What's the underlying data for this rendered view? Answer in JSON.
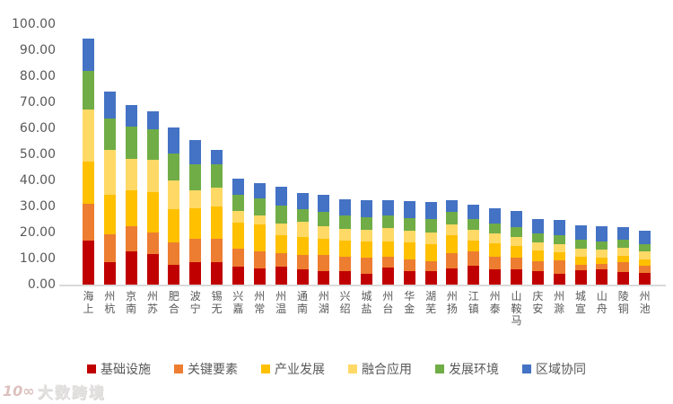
{
  "chart_data": {
    "type": "bar",
    "stacked": true,
    "title": "",
    "xlabel": "",
    "ylabel": "",
    "ylim": [
      0,
      100
    ],
    "grid": false,
    "legend_position": "bottom",
    "x_label_orientation": "vertical-bottom-to-top",
    "y_ticks": [
      "0.00",
      "10.00",
      "20.00",
      "30.00",
      "40.00",
      "50.00",
      "60.00",
      "70.00",
      "80.00",
      "90.00",
      "100.00"
    ],
    "categories": [
      "上海",
      "杭州",
      "南京",
      "苏州",
      "合肥",
      "宁波",
      "无锡",
      "嘉兴",
      "常州",
      "温州",
      "南通",
      "湖州",
      "绍兴",
      "盐城",
      "台州",
      "金华",
      "芜湖",
      "扬州",
      "镇江",
      "泰州",
      "马鞍山",
      "安庆",
      "滁州",
      "宣城",
      "舟山",
      "铜陵",
      "池州"
    ],
    "series": [
      {
        "name": "基础设施",
        "color": "#C00000",
        "values": [
          16.8,
          8.7,
          12.8,
          11.8,
          7.7,
          8.6,
          8.7,
          7.0,
          6.1,
          6.8,
          5.9,
          5.3,
          5.1,
          4.0,
          6.5,
          5.1,
          5.1,
          6.3,
          7.3,
          5.8,
          5.8,
          5.1,
          4.2,
          5.6,
          5.9,
          4.7,
          4.5
        ]
      },
      {
        "name": "关键要素",
        "color": "#ED7D31",
        "values": [
          14.3,
          10.6,
          9.5,
          8.1,
          8.4,
          9.1,
          9.0,
          6.6,
          6.8,
          5.4,
          5.5,
          6.1,
          5.5,
          6.3,
          4.2,
          4.6,
          4.0,
          5.7,
          5.3,
          4.8,
          4.4,
          4.0,
          5.1,
          2.1,
          2.0,
          3.8,
          2.8
        ]
      },
      {
        "name": "产业发展",
        "color": "#FFC000",
        "values": [
          16.1,
          15.2,
          13.8,
          15.5,
          12.9,
          11.5,
          12.1,
          10.2,
          10.0,
          6.6,
          6.9,
          6.3,
          6.2,
          6.4,
          6.0,
          6.5,
          6.3,
          6.9,
          4.2,
          5.2,
          4.5,
          4.0,
          3.0,
          3.1,
          2.5,
          2.6,
          2.4
        ]
      },
      {
        "name": "融合应用",
        "color": "#FFD966",
        "values": [
          19.9,
          17.0,
          12.2,
          12.3,
          10.8,
          6.8,
          7.4,
          4.4,
          3.6,
          4.6,
          5.9,
          4.7,
          4.6,
          4.3,
          5.1,
          4.4,
          4.6,
          4.1,
          4.3,
          4.0,
          3.5,
          3.1,
          3.1,
          3.1,
          3.0,
          3.1,
          2.9
        ]
      },
      {
        "name": "发展环境",
        "color": "#70AD47",
        "values": [
          14.9,
          12.3,
          12.4,
          11.8,
          10.6,
          10.1,
          9.0,
          6.2,
          6.4,
          7.0,
          4.6,
          5.6,
          5.1,
          5.0,
          4.7,
          4.9,
          5.2,
          5.0,
          4.0,
          3.6,
          3.8,
          3.5,
          3.5,
          3.4,
          3.2,
          2.9,
          2.9
        ]
      },
      {
        "name": "区域协同",
        "color": "#4472C4",
        "values": [
          12.5,
          10.1,
          8.2,
          7.0,
          10.0,
          9.2,
          5.5,
          6.4,
          6.1,
          7.0,
          6.4,
          6.5,
          6.3,
          6.4,
          5.8,
          6.6,
          6.4,
          4.4,
          5.6,
          5.8,
          6.4,
          5.6,
          6.0,
          5.4,
          5.7,
          5.0,
          5.2
        ]
      }
    ]
  },
  "watermark": {
    "logo_text": "10∞",
    "text": "大数跨境"
  },
  "style_colors": {
    "tick_label": "#595959",
    "axis_line": "#d9d9d9",
    "background": "#ffffff"
  }
}
